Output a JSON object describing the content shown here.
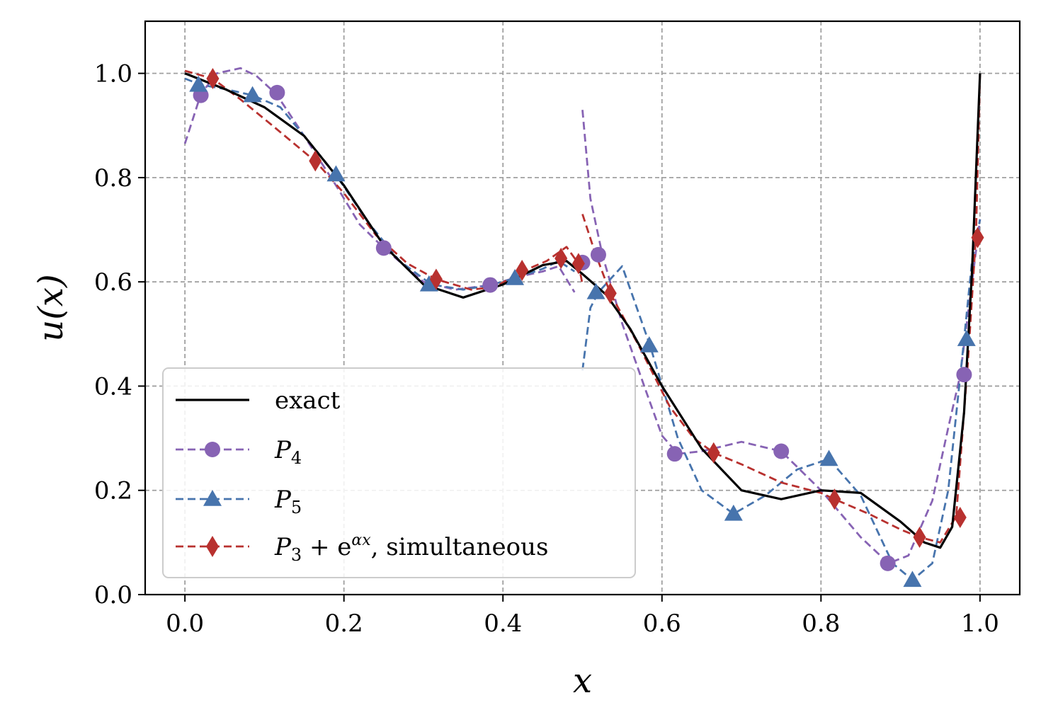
{
  "chart_data": {
    "type": "line",
    "xlabel": "x",
    "ylabel": "u(x)",
    "xlim": [
      -0.05,
      1.05
    ],
    "ylim": [
      0.0,
      1.1
    ],
    "xticks": [
      "0.0",
      "0.2",
      "0.4",
      "0.6",
      "0.8",
      "1.0"
    ],
    "yticks": [
      "0.0",
      "0.2",
      "0.4",
      "0.6",
      "0.8",
      "1.0"
    ],
    "xtick_values": [
      0.0,
      0.2,
      0.4,
      0.6,
      0.8,
      1.0
    ],
    "ytick_values": [
      0.0,
      0.2,
      0.4,
      0.6,
      0.8,
      1.0
    ],
    "grid": true,
    "legend_position": "lower-left",
    "series": [
      {
        "name": "exact",
        "color": "#000000",
        "style": "solid",
        "marker": "none",
        "segments": [
          [
            [
              0.0,
              1.0
            ],
            [
              0.05,
              0.97
            ],
            [
              0.1,
              0.935
            ],
            [
              0.15,
              0.88
            ],
            [
              0.2,
              0.785
            ],
            [
              0.25,
              0.67
            ],
            [
              0.3,
              0.595
            ],
            [
              0.35,
              0.57
            ],
            [
              0.4,
              0.595
            ],
            [
              0.45,
              0.632
            ],
            [
              0.48,
              0.64
            ],
            [
              0.5,
              0.615
            ],
            [
              0.53,
              0.575
            ],
            [
              0.56,
              0.51
            ],
            [
              0.6,
              0.4
            ],
            [
              0.65,
              0.28
            ],
            [
              0.7,
              0.2
            ],
            [
              0.75,
              0.183
            ],
            [
              0.8,
              0.2
            ],
            [
              0.85,
              0.195
            ],
            [
              0.9,
              0.14
            ],
            [
              0.93,
              0.1
            ],
            [
              0.95,
              0.09
            ],
            [
              0.965,
              0.13
            ],
            [
              0.98,
              0.35
            ],
            [
              0.99,
              0.62
            ],
            [
              1.0,
              1.0
            ]
          ]
        ]
      },
      {
        "name": "P4",
        "color": "#8763b4",
        "style": "dashed",
        "marker": "circle",
        "segments": [
          [
            [
              0.0,
              0.865
            ],
            [
              0.02,
              0.96
            ],
            [
              0.04,
              1.0
            ],
            [
              0.07,
              1.01
            ],
            [
              0.09,
              0.995
            ],
            [
              0.115,
              0.96
            ],
            [
              0.15,
              0.88
            ],
            [
              0.19,
              0.785
            ],
            [
              0.22,
              0.71
            ],
            [
              0.25,
              0.665
            ],
            [
              0.3,
              0.6
            ],
            [
              0.34,
              0.585
            ],
            [
              0.385,
              0.594
            ],
            [
              0.42,
              0.61
            ],
            [
              0.45,
              0.62
            ],
            [
              0.47,
              0.63
            ],
            [
              0.49,
              0.58
            ]
          ],
          [
            [
              0.5,
              0.93
            ],
            [
              0.51,
              0.76
            ],
            [
              0.525,
              0.652
            ],
            [
              0.55,
              0.52
            ],
            [
              0.58,
              0.39
            ],
            [
              0.6,
              0.305
            ],
            [
              0.62,
              0.27
            ],
            [
              0.65,
              0.275
            ],
            [
              0.7,
              0.293
            ],
            [
              0.75,
              0.275
            ],
            [
              0.8,
              0.2
            ],
            [
              0.85,
              0.11
            ],
            [
              0.885,
              0.06
            ],
            [
              0.91,
              0.075
            ],
            [
              0.94,
              0.18
            ],
            [
              0.96,
              0.32
            ],
            [
              0.975,
              0.42
            ],
            [
              0.99,
              0.6
            ],
            [
              1.0,
              0.72
            ]
          ]
        ],
        "markers": [
          [
            0.02,
            0.958
          ],
          [
            0.116,
            0.963
          ],
          [
            0.25,
            0.665
          ],
          [
            0.384,
            0.594
          ],
          [
            0.5,
            0.637
          ],
          [
            0.52,
            0.652
          ],
          [
            0.616,
            0.27
          ],
          [
            0.75,
            0.275
          ],
          [
            0.884,
            0.06
          ],
          [
            0.98,
            0.422
          ]
        ]
      },
      {
        "name": "P5",
        "color": "#4774ad",
        "style": "dashed",
        "marker": "triangle",
        "segments": [
          [
            [
              0.0,
              0.99
            ],
            [
              0.02,
              0.978
            ],
            [
              0.05,
              0.97
            ],
            [
              0.085,
              0.958
            ],
            [
              0.12,
              0.935
            ],
            [
              0.15,
              0.88
            ],
            [
              0.19,
              0.805
            ],
            [
              0.23,
              0.715
            ],
            [
              0.27,
              0.64
            ],
            [
              0.31,
              0.595
            ],
            [
              0.35,
              0.585
            ],
            [
              0.385,
              0.594
            ],
            [
              0.415,
              0.607
            ],
            [
              0.45,
              0.625
            ],
            [
              0.47,
              0.64
            ],
            [
              0.49,
              0.62
            ]
          ],
          [
            [
              0.5,
              0.43
            ],
            [
              0.51,
              0.55
            ],
            [
              0.52,
              0.58
            ],
            [
              0.55,
              0.63
            ],
            [
              0.585,
              0.478
            ],
            [
              0.62,
              0.3
            ],
            [
              0.65,
              0.2
            ],
            [
              0.69,
              0.155
            ],
            [
              0.73,
              0.19
            ],
            [
              0.77,
              0.24
            ],
            [
              0.81,
              0.26
            ],
            [
              0.85,
              0.19
            ],
            [
              0.89,
              0.06
            ],
            [
              0.915,
              0.028
            ],
            [
              0.94,
              0.06
            ],
            [
              0.96,
              0.2
            ],
            [
              0.98,
              0.49
            ],
            [
              0.99,
              0.64
            ],
            [
              1.0,
              0.72
            ]
          ]
        ],
        "markers": [
          [
            0.017,
            0.978
          ],
          [
            0.085,
            0.958
          ],
          [
            0.19,
            0.806
          ],
          [
            0.307,
            0.595
          ],
          [
            0.415,
            0.607
          ],
          [
            0.517,
            0.58
          ],
          [
            0.584,
            0.478
          ],
          [
            0.69,
            0.155
          ],
          [
            0.81,
            0.26
          ],
          [
            0.915,
            0.028
          ],
          [
            0.983,
            0.49
          ]
        ]
      },
      {
        "name": "P3 + e^{αx}, simultaneous",
        "color": "#b8312f",
        "style": "dashed",
        "marker": "diamond",
        "segments": [
          [
            [
              0.0,
              1.005
            ],
            [
              0.035,
              0.99
            ],
            [
              0.07,
              0.95
            ],
            [
              0.11,
              0.9
            ],
            [
              0.165,
              0.83
            ],
            [
              0.2,
              0.77
            ],
            [
              0.24,
              0.69
            ],
            [
              0.28,
              0.635
            ],
            [
              0.316,
              0.605
            ],
            [
              0.36,
              0.585
            ],
            [
              0.39,
              0.59
            ],
            [
              0.424,
              0.62
            ],
            [
              0.455,
              0.64
            ],
            [
              0.48,
              0.667
            ],
            [
              0.495,
              0.635
            ],
            [
              0.5,
              0.595
            ]
          ],
          [
            [
              0.5,
              0.73
            ],
            [
              0.515,
              0.66
            ],
            [
              0.535,
              0.578
            ],
            [
              0.57,
              0.48
            ],
            [
              0.61,
              0.36
            ],
            [
              0.64,
              0.3
            ],
            [
              0.665,
              0.272
            ],
            [
              0.7,
              0.25
            ],
            [
              0.75,
              0.215
            ],
            [
              0.8,
              0.195
            ],
            [
              0.817,
              0.183
            ],
            [
              0.86,
              0.155
            ],
            [
              0.9,
              0.125
            ],
            [
              0.924,
              0.11
            ],
            [
              0.95,
              0.1
            ],
            [
              0.97,
              0.15
            ],
            [
              0.985,
              0.45
            ],
            [
              0.995,
              0.69
            ],
            [
              1.0,
              1.0
            ]
          ]
        ],
        "markers": [
          [
            0.035,
            0.99
          ],
          [
            0.164,
            0.832
          ],
          [
            0.316,
            0.605
          ],
          [
            0.424,
            0.622
          ],
          [
            0.473,
            0.645
          ],
          [
            0.495,
            0.635
          ],
          [
            0.535,
            0.578
          ],
          [
            0.665,
            0.272
          ],
          [
            0.817,
            0.183
          ],
          [
            0.924,
            0.11
          ],
          [
            0.975,
            0.148
          ],
          [
            0.997,
            0.685
          ]
        ]
      }
    ],
    "legend": [
      {
        "label": "exact",
        "series": 0
      },
      {
        "label_base": "P",
        "label_sub": "4",
        "series": 1
      },
      {
        "label_base": "P",
        "label_sub": "5",
        "series": 2
      },
      {
        "label_base": "P",
        "label_sub": "3",
        "label_mid": " + e",
        "label_sup": "αx",
        "label_tail": ", simultaneous",
        "series": 3
      }
    ]
  }
}
